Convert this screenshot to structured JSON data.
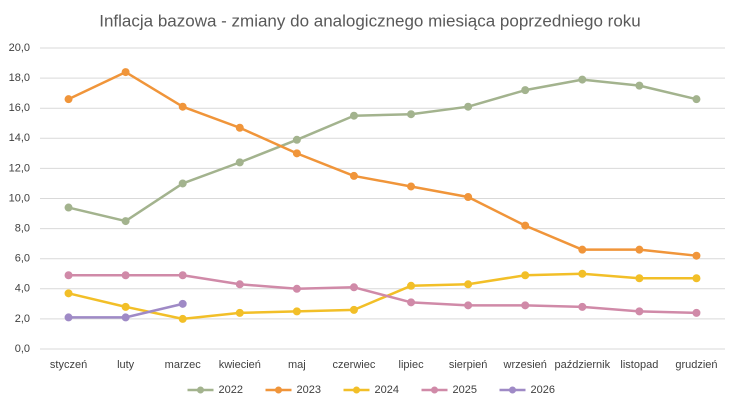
{
  "chart_data": {
    "type": "line",
    "title": "Inflacja bazowa - zmiany do analogicznego miesiąca poprzedniego roku",
    "categories": [
      "styczeń",
      "luty",
      "marzec",
      "kwiecień",
      "maj",
      "czerwiec",
      "lipiec",
      "sierpień",
      "wrzesień",
      "październik",
      "listopad",
      "grudzień"
    ],
    "series": [
      {
        "name": "2022",
        "color": "#a3b38e",
        "values": [
          9.4,
          8.5,
          11.0,
          12.4,
          13.9,
          15.5,
          15.6,
          16.1,
          17.2,
          17.9,
          17.5,
          16.6
        ]
      },
      {
        "name": "2023",
        "color": "#f0953a",
        "values": [
          16.6,
          18.4,
          16.1,
          14.7,
          13.0,
          11.5,
          10.8,
          10.1,
          8.2,
          6.6,
          6.6,
          6.2
        ]
      },
      {
        "name": "2024",
        "color": "#f2bf28",
        "values": [
          3.7,
          2.8,
          2.0,
          2.4,
          2.5,
          2.6,
          4.2,
          4.3,
          4.9,
          5.0,
          4.7,
          4.7
        ]
      },
      {
        "name": "2025",
        "color": "#d08aa8",
        "values": [
          4.9,
          4.9,
          4.9,
          4.3,
          4.0,
          4.1,
          3.1,
          2.9,
          2.9,
          2.8,
          2.5,
          2.4
        ]
      },
      {
        "name": "2026",
        "color": "#9f8ac6",
        "values": [
          2.1,
          2.1,
          3.0,
          null,
          null,
          null,
          null,
          null,
          null,
          null,
          null,
          null
        ]
      }
    ],
    "ylim": [
      0,
      20
    ],
    "yticks": [
      {
        "value": 0,
        "label": "0,0"
      },
      {
        "value": 2,
        "label": "2,0"
      },
      {
        "value": 4,
        "label": "4,0"
      },
      {
        "value": 6,
        "label": "6,0"
      },
      {
        "value": 8,
        "label": "8,0"
      },
      {
        "value": 10,
        "label": "10,0"
      },
      {
        "value": 12,
        "label": "12,0"
      },
      {
        "value": 14,
        "label": "14,0"
      },
      {
        "value": 16,
        "label": "16,0"
      },
      {
        "value": 18,
        "label": "18,0"
      },
      {
        "value": 20,
        "label": "20,0"
      }
    ],
    "grid": true,
    "legend": "bottom"
  }
}
